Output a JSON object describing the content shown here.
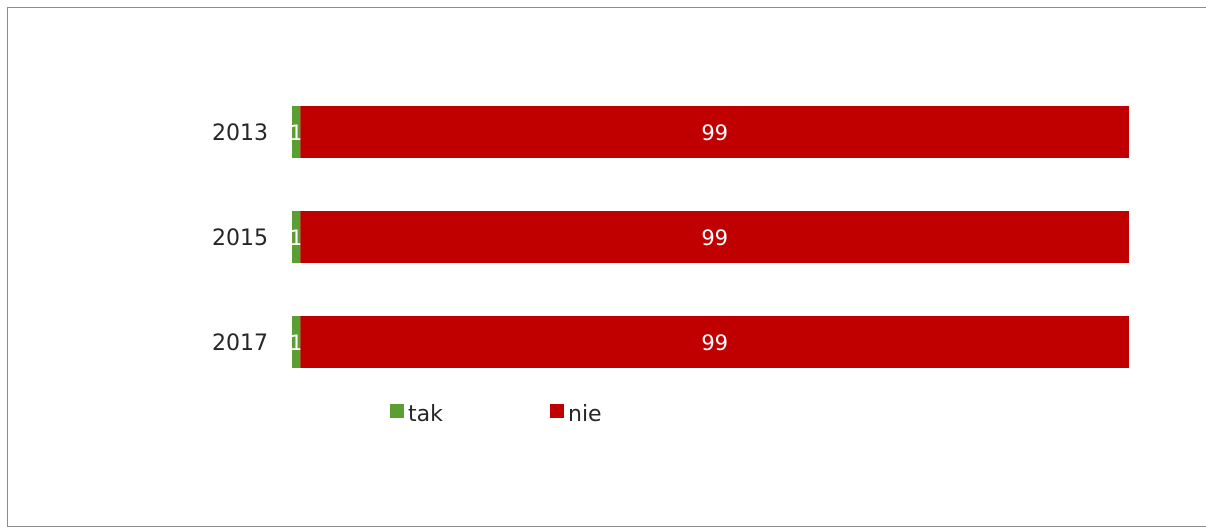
{
  "chart_data": {
    "type": "bar",
    "orientation": "horizontal",
    "stacked": true,
    "categories": [
      "2013",
      "2015",
      "2017"
    ],
    "series": [
      {
        "name": "tak",
        "values": [
          1,
          1,
          1
        ],
        "color": "#5b9e32"
      },
      {
        "name": "nie",
        "values": [
          99,
          99,
          99
        ],
        "color": "#c00000"
      }
    ],
    "xlim": [
      0,
      100
    ],
    "grid": false,
    "legend": {
      "position": "bottom",
      "entries": [
        "tak",
        "nie"
      ]
    }
  }
}
